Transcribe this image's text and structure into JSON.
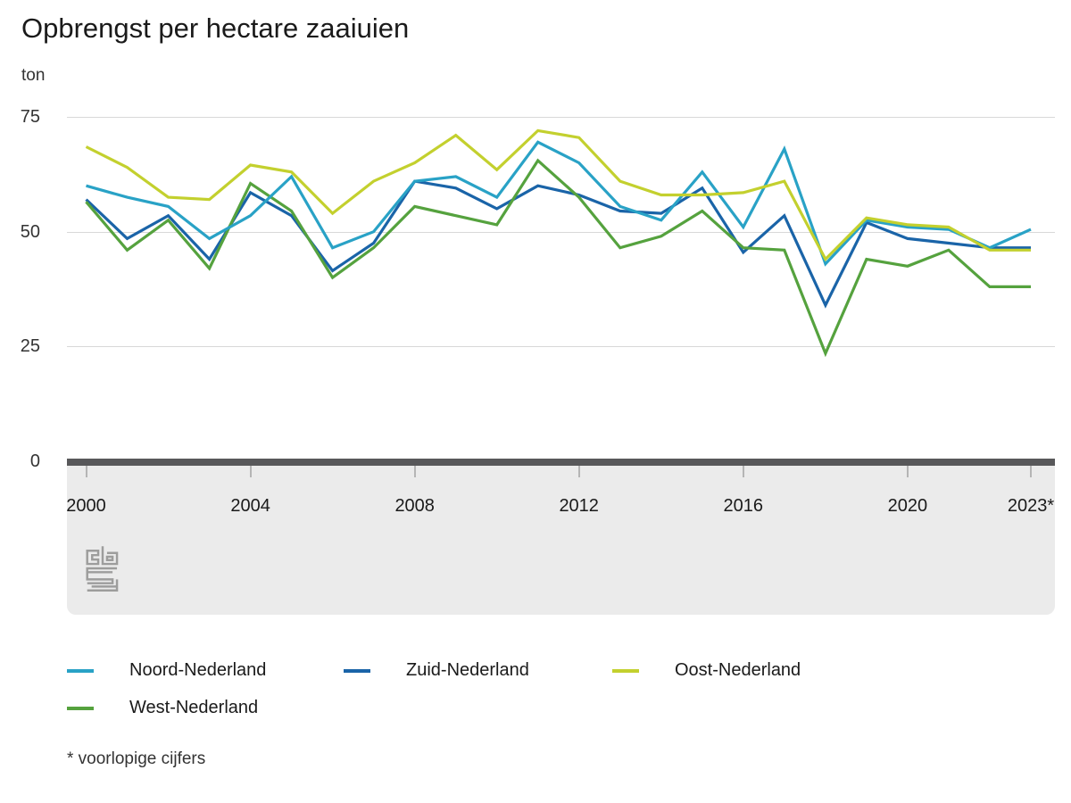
{
  "title": "Opbrengst per hectare zaaiuien",
  "unit_label": "ton",
  "footnote": "* voorlopige cijfers",
  "logo_name": "cbs-logo",
  "colors": {
    "axis_bar": "#58585a",
    "panel_background": "#ebebeb",
    "gridline": "#d8d8d8",
    "tick_mark": "#b5b5b5",
    "logo_gray": "#9d9d9c"
  },
  "chart_data": {
    "type": "line",
    "title": "Opbrengst per hectare zaaiuien",
    "ylabel": "ton",
    "xlabel": "",
    "ylim": [
      0,
      75
    ],
    "y_ticks": [
      0,
      25,
      50,
      75
    ],
    "grid": "horizontal",
    "legend_position": "bottom",
    "x": [
      2000,
      2001,
      2002,
      2003,
      2004,
      2005,
      2006,
      2007,
      2008,
      2009,
      2010,
      2011,
      2012,
      2013,
      2014,
      2015,
      2016,
      2017,
      2018,
      2019,
      2020,
      2021,
      2022,
      2023
    ],
    "x_tick_years": [
      2000,
      2004,
      2008,
      2012,
      2016,
      2020,
      2023
    ],
    "x_tick_labels": [
      "2000",
      "2004",
      "2008",
      "2012",
      "2016",
      "2020",
      "2023*"
    ],
    "series": [
      {
        "name": "Noord-Nederland",
        "color": "#29a2c6",
        "values": [
          60,
          57.5,
          55.5,
          48.5,
          53.5,
          62,
          46.5,
          50,
          61,
          62,
          57.5,
          69.5,
          65,
          55.5,
          52.5,
          63,
          51,
          68,
          43,
          52.5,
          51,
          50.5,
          46.5,
          50.5
        ]
      },
      {
        "name": "Zuid-Nederland",
        "color": "#1a64a8",
        "values": [
          57,
          48.5,
          53.5,
          44,
          58.5,
          53.5,
          41.5,
          47.5,
          61,
          59.5,
          55,
          60,
          58,
          54.5,
          54,
          59.5,
          45.5,
          53.5,
          34,
          52,
          48.5,
          47.5,
          46.5,
          46.5
        ]
      },
      {
        "name": "Oost-Nederland",
        "color": "#c3d02e",
        "values": [
          68.5,
          64,
          57.5,
          57,
          64.5,
          63,
          54,
          61,
          65,
          71,
          63.5,
          72,
          70.5,
          61,
          58,
          58,
          58.5,
          61,
          44,
          53,
          51.5,
          51,
          46,
          46
        ]
      },
      {
        "name": "West-Nederland",
        "color": "#55a23e",
        "values": [
          56.5,
          46,
          52.5,
          42,
          60.5,
          54.5,
          40,
          46.5,
          55.5,
          53.5,
          51.5,
          65.5,
          57.5,
          46.5,
          49,
          54.5,
          46.5,
          46,
          23.5,
          44,
          42.5,
          46,
          38,
          38
        ]
      }
    ],
    "draw_order": [
      "Zuid-Nederland",
      "West-Nederland",
      "Noord-Nederland",
      "Oost-Nederland"
    ]
  }
}
